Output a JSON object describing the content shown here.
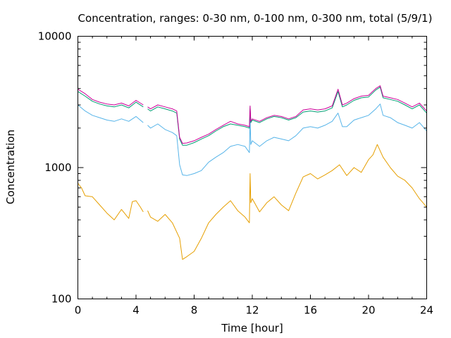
{
  "chart_data": {
    "type": "line",
    "title": "Concentration, ranges: 0-30 nm, 0-100 nm, 0-300 nm, total (5/9/1)",
    "xlabel": "Time [hour]",
    "ylabel": "Concentration",
    "xlim": [
      0,
      24
    ],
    "ylim": [
      100,
      10000
    ],
    "yscale": "log",
    "grid": false,
    "legend": "none",
    "x_ticks": [
      0,
      4,
      8,
      12,
      16,
      20,
      24
    ],
    "y_ticks": [
      100,
      1000,
      10000
    ],
    "x_tick_labels": [
      "0",
      "4",
      "8",
      "12",
      "16",
      "20",
      "24"
    ],
    "y_tick_labels": [
      "100",
      "1000",
      "10000"
    ],
    "series": [
      {
        "color": "#e69f00",
        "points": [
          [
            0,
            760
          ],
          [
            0.25,
            700
          ],
          [
            0.5,
            610
          ],
          [
            1,
            600
          ],
          [
            1.5,
            520
          ],
          [
            2,
            450
          ],
          [
            2.5,
            400
          ],
          [
            3,
            480
          ],
          [
            3.5,
            410
          ],
          [
            3.75,
            550
          ],
          [
            4,
            560
          ],
          [
            4.3,
            500
          ],
          [
            4.5,
            460
          ],
          [
            4.75,
            null
          ],
          [
            4.8,
            470
          ],
          [
            5,
            420
          ],
          [
            5.5,
            390
          ],
          [
            6,
            440
          ],
          [
            6.5,
            380
          ],
          [
            7,
            290
          ],
          [
            7.2,
            200
          ],
          [
            7.5,
            210
          ],
          [
            8,
            230
          ],
          [
            8.5,
            290
          ],
          [
            9,
            380
          ],
          [
            9.5,
            440
          ],
          [
            10,
            500
          ],
          [
            10.5,
            560
          ],
          [
            11,
            470
          ],
          [
            11.5,
            420
          ],
          [
            11.8,
            380
          ],
          [
            11.85,
            900
          ],
          [
            11.9,
            540
          ],
          [
            12,
            580
          ],
          [
            12.5,
            460
          ],
          [
            13,
            540
          ],
          [
            13.5,
            600
          ],
          [
            14,
            520
          ],
          [
            14.5,
            470
          ],
          [
            15,
            640
          ],
          [
            15.5,
            850
          ],
          [
            16,
            900
          ],
          [
            16.5,
            820
          ],
          [
            17,
            880
          ],
          [
            17.5,
            950
          ],
          [
            18,
            1050
          ],
          [
            18.5,
            870
          ],
          [
            19,
            1000
          ],
          [
            19.5,
            920
          ],
          [
            20,
            1150
          ],
          [
            20.3,
            1250
          ],
          [
            20.6,
            1500
          ],
          [
            21,
            1200
          ],
          [
            21.5,
            1000
          ],
          [
            22,
            860
          ],
          [
            22.5,
            800
          ],
          [
            23,
            700
          ],
          [
            23.5,
            580
          ],
          [
            24,
            500
          ]
        ]
      },
      {
        "color": "#56b4e9",
        "points": [
          [
            0,
            3000
          ],
          [
            0.5,
            2700
          ],
          [
            1,
            2500
          ],
          [
            1.5,
            2400
          ],
          [
            2,
            2300
          ],
          [
            2.5,
            2250
          ],
          [
            3,
            2350
          ],
          [
            3.5,
            2250
          ],
          [
            4,
            2450
          ],
          [
            4.5,
            2200
          ],
          [
            4.75,
            null
          ],
          [
            4.8,
            2100
          ],
          [
            5,
            2000
          ],
          [
            5.5,
            2150
          ],
          [
            6,
            1950
          ],
          [
            6.5,
            1850
          ],
          [
            6.8,
            1750
          ],
          [
            7,
            1050
          ],
          [
            7.2,
            880
          ],
          [
            7.5,
            870
          ],
          [
            8,
            900
          ],
          [
            8.5,
            950
          ],
          [
            9,
            1100
          ],
          [
            9.5,
            1200
          ],
          [
            10,
            1300
          ],
          [
            10.5,
            1450
          ],
          [
            11,
            1500
          ],
          [
            11.5,
            1450
          ],
          [
            11.8,
            1300
          ],
          [
            11.85,
            2400
          ],
          [
            11.9,
            1500
          ],
          [
            12,
            1600
          ],
          [
            12.5,
            1450
          ],
          [
            13,
            1600
          ],
          [
            13.5,
            1700
          ],
          [
            14,
            1650
          ],
          [
            14.5,
            1600
          ],
          [
            15,
            1750
          ],
          [
            15.5,
            2000
          ],
          [
            16,
            2050
          ],
          [
            16.5,
            2000
          ],
          [
            17,
            2100
          ],
          [
            17.5,
            2250
          ],
          [
            17.9,
            2600
          ],
          [
            18.2,
            2050
          ],
          [
            18.5,
            2050
          ],
          [
            19,
            2300
          ],
          [
            19.5,
            2400
          ],
          [
            20,
            2500
          ],
          [
            20.5,
            2800
          ],
          [
            20.8,
            3050
          ],
          [
            21,
            2500
          ],
          [
            21.5,
            2400
          ],
          [
            22,
            2200
          ],
          [
            22.5,
            2100
          ],
          [
            23,
            2000
          ],
          [
            23.5,
            2200
          ],
          [
            24,
            1900
          ]
        ]
      },
      {
        "color": "#009e73",
        "points": [
          [
            0,
            3800
          ],
          [
            0.5,
            3500
          ],
          [
            1,
            3200
          ],
          [
            1.5,
            3050
          ],
          [
            2,
            2950
          ],
          [
            2.5,
            2900
          ],
          [
            3,
            3000
          ],
          [
            3.5,
            2850
          ],
          [
            4,
            3150
          ],
          [
            4.5,
            2900
          ],
          [
            4.75,
            null
          ],
          [
            4.8,
            2800
          ],
          [
            5,
            2700
          ],
          [
            5.5,
            2900
          ],
          [
            6,
            2800
          ],
          [
            6.5,
            2700
          ],
          [
            6.8,
            2600
          ],
          [
            7,
            1650
          ],
          [
            7.2,
            1480
          ],
          [
            7.5,
            1480
          ],
          [
            8,
            1550
          ],
          [
            8.5,
            1650
          ],
          [
            9,
            1750
          ],
          [
            9.5,
            1900
          ],
          [
            10,
            2050
          ],
          [
            10.5,
            2150
          ],
          [
            11,
            2100
          ],
          [
            11.5,
            2050
          ],
          [
            11.8,
            2000
          ],
          [
            11.85,
            2900
          ],
          [
            11.9,
            2200
          ],
          [
            12,
            2300
          ],
          [
            12.5,
            2200
          ],
          [
            13,
            2350
          ],
          [
            13.5,
            2450
          ],
          [
            14,
            2400
          ],
          [
            14.5,
            2300
          ],
          [
            15,
            2400
          ],
          [
            15.5,
            2650
          ],
          [
            16,
            2700
          ],
          [
            16.5,
            2650
          ],
          [
            17,
            2700
          ],
          [
            17.5,
            2850
          ],
          [
            17.9,
            3800
          ],
          [
            18.2,
            2900
          ],
          [
            18.5,
            3000
          ],
          [
            19,
            3250
          ],
          [
            19.5,
            3400
          ],
          [
            20,
            3450
          ],
          [
            20.5,
            3900
          ],
          [
            20.8,
            4100
          ],
          [
            21,
            3400
          ],
          [
            21.5,
            3300
          ],
          [
            22,
            3200
          ],
          [
            22.5,
            3000
          ],
          [
            23,
            2800
          ],
          [
            23.5,
            3000
          ],
          [
            24,
            2600
          ]
        ]
      },
      {
        "color": "#cc0099",
        "points": [
          [
            0,
            3950
          ],
          [
            0.5,
            3650
          ],
          [
            1,
            3300
          ],
          [
            1.5,
            3150
          ],
          [
            2,
            3050
          ],
          [
            2.5,
            3000
          ],
          [
            3,
            3100
          ],
          [
            3.5,
            2950
          ],
          [
            4,
            3250
          ],
          [
            4.5,
            3000
          ],
          [
            4.75,
            null
          ],
          [
            4.8,
            2900
          ],
          [
            5,
            2800
          ],
          [
            5.5,
            3000
          ],
          [
            6,
            2900
          ],
          [
            6.5,
            2800
          ],
          [
            6.8,
            2700
          ],
          [
            7,
            1700
          ],
          [
            7.2,
            1530
          ],
          [
            7.5,
            1540
          ],
          [
            8,
            1600
          ],
          [
            8.5,
            1700
          ],
          [
            9,
            1800
          ],
          [
            9.5,
            1950
          ],
          [
            10,
            2100
          ],
          [
            10.5,
            2250
          ],
          [
            11,
            2150
          ],
          [
            11.5,
            2100
          ],
          [
            11.8,
            2050
          ],
          [
            11.85,
            2950
          ],
          [
            11.9,
            2250
          ],
          [
            12,
            2350
          ],
          [
            12.5,
            2250
          ],
          [
            13,
            2400
          ],
          [
            13.5,
            2500
          ],
          [
            14,
            2450
          ],
          [
            14.5,
            2350
          ],
          [
            15,
            2450
          ],
          [
            15.5,
            2750
          ],
          [
            16,
            2800
          ],
          [
            16.5,
            2750
          ],
          [
            17,
            2800
          ],
          [
            17.5,
            2950
          ],
          [
            17.9,
            3950
          ],
          [
            18.2,
            3000
          ],
          [
            18.5,
            3100
          ],
          [
            19,
            3350
          ],
          [
            19.5,
            3500
          ],
          [
            20,
            3550
          ],
          [
            20.5,
            4000
          ],
          [
            20.8,
            4200
          ],
          [
            21,
            3500
          ],
          [
            21.5,
            3400
          ],
          [
            22,
            3300
          ],
          [
            22.5,
            3100
          ],
          [
            23,
            2900
          ],
          [
            23.5,
            3100
          ],
          [
            24,
            2700
          ]
        ]
      }
    ]
  }
}
